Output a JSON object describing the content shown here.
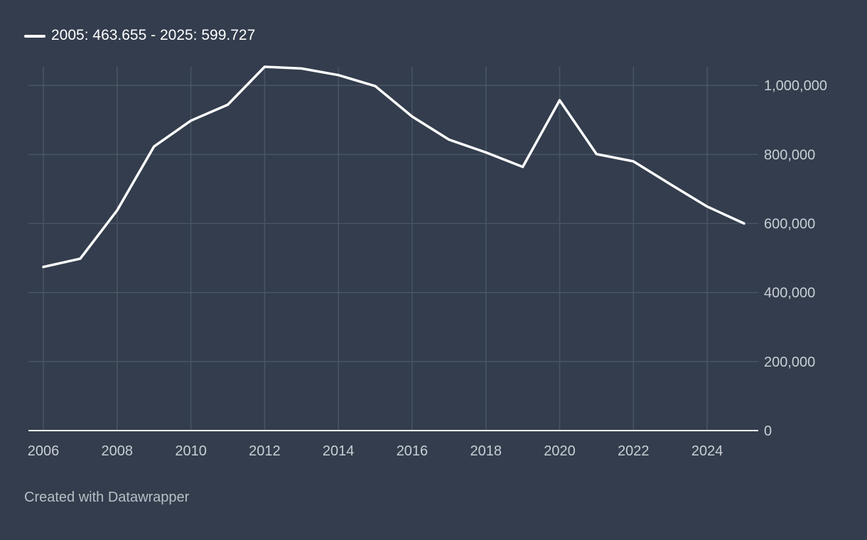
{
  "legend": {
    "label": "2005: 463.655 - 2025: 599.727"
  },
  "footer": {
    "credit": "Created with Datawrapper"
  },
  "colors": {
    "background": "#333d4d",
    "line": "#ffffff",
    "grid": "#4a5563",
    "baseline": "#ffffff",
    "tick_text": "#c9ced5"
  },
  "chart_data": {
    "type": "line",
    "title": "",
    "xlabel": "",
    "ylabel": "",
    "x": [
      2006,
      2007,
      2008,
      2009,
      2010,
      2011,
      2012,
      2013,
      2014,
      2015,
      2016,
      2017,
      2018,
      2019,
      2020,
      2021,
      2022,
      2023,
      2024,
      2025
    ],
    "series": [
      {
        "name": "2005: 463.655 - 2025: 599.727",
        "values": [
          474000,
          498000,
          638000,
          823000,
          898000,
          944000,
          1054000,
          1049000,
          1030000,
          998000,
          910000,
          843000,
          806000,
          764000,
          957000,
          801000,
          780000,
          714000,
          649000,
          600000
        ]
      }
    ],
    "xlim": [
      2006,
      2025
    ],
    "ylim": [
      0,
      1054000
    ],
    "x_ticks": [
      2006,
      2008,
      2010,
      2012,
      2014,
      2016,
      2018,
      2020,
      2022,
      2024
    ],
    "x_tick_labels": [
      "2006",
      "2008",
      "2010",
      "2012",
      "2014",
      "2016",
      "2018",
      "2020",
      "2022",
      "2024"
    ],
    "y_ticks": [
      0,
      200000,
      400000,
      600000,
      800000,
      1000000
    ],
    "y_tick_labels": [
      "0",
      "200,000",
      "400,000",
      "600,000",
      "800,000",
      "1,000,000"
    ],
    "grid": true,
    "y_axis_position": "right",
    "legend_position": "top-left"
  }
}
